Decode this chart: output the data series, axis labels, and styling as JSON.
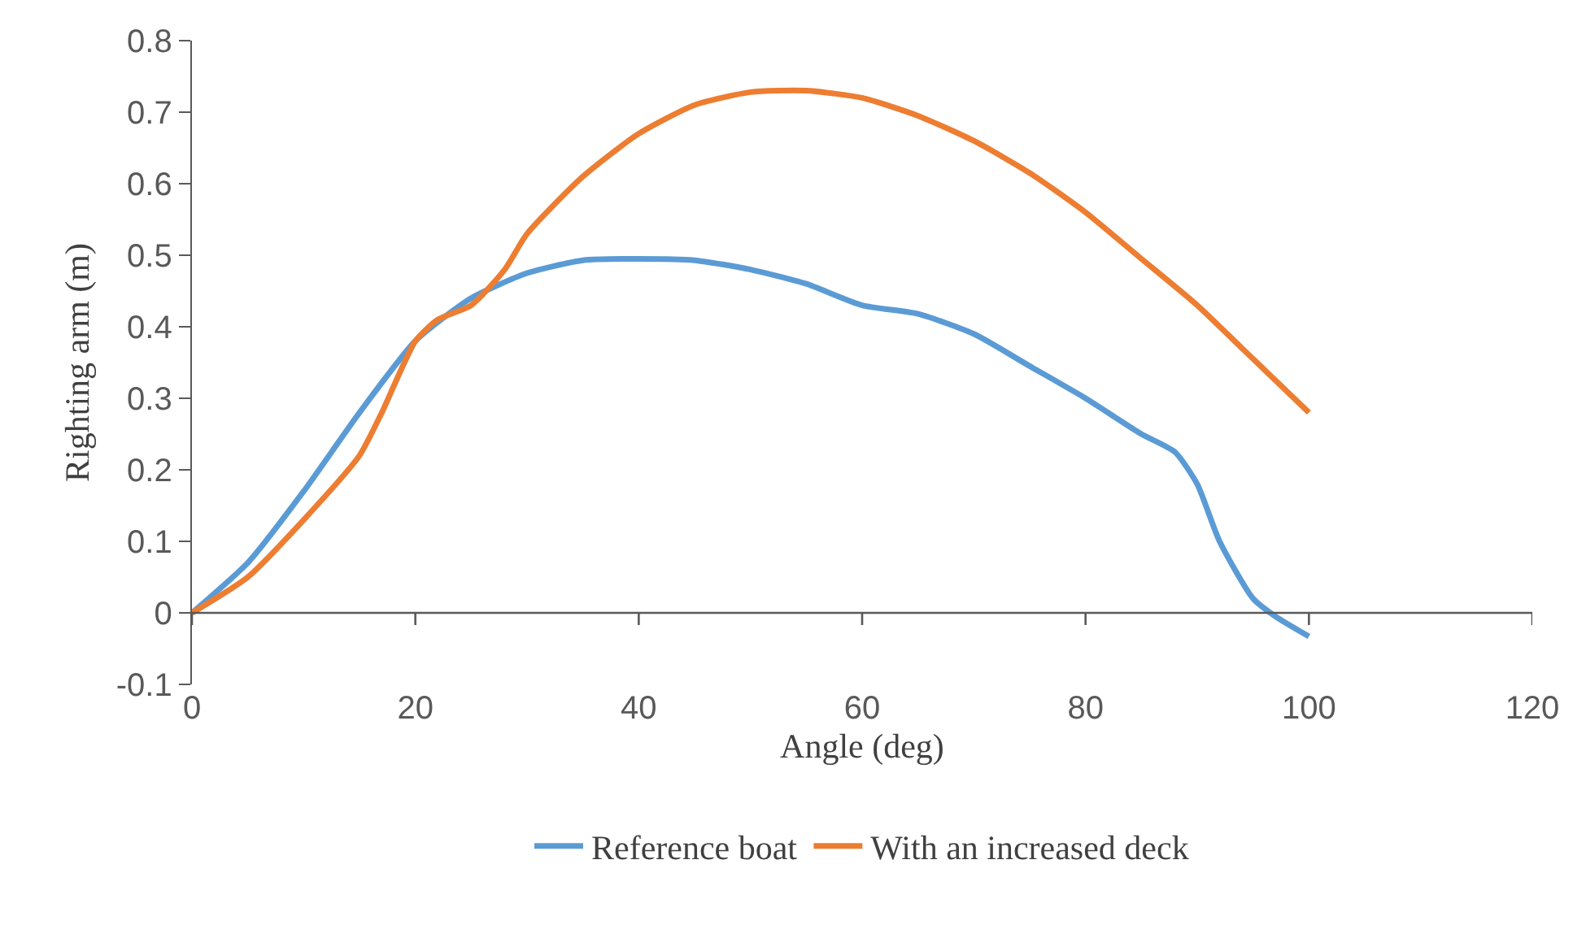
{
  "chart_data": {
    "type": "line",
    "xlabel": "Angle (deg)",
    "ylabel": "Righting arm (m)",
    "xlim": [
      0,
      120
    ],
    "xticks": [
      0,
      20,
      40,
      60,
      80,
      100,
      120
    ],
    "ylim": [
      -0.1,
      0.8
    ],
    "yticks": [
      -0.1,
      0,
      0.1,
      0.2,
      0.3,
      0.4,
      0.5,
      0.6,
      0.7,
      0.8
    ],
    "grid": false,
    "legend": "bottom",
    "marker": "none",
    "line_style": "solid",
    "series": [
      {
        "name": "Reference boat",
        "color": "#5b9bd5",
        "x": [
          0,
          5,
          10,
          15,
          20,
          25,
          30,
          35,
          40,
          45,
          50,
          55,
          60,
          65,
          70,
          75,
          80,
          85,
          88,
          90,
          92,
          95,
          97,
          100
        ],
        "values": [
          0,
          0.07,
          0.17,
          0.28,
          0.38,
          0.44,
          0.475,
          0.493,
          0.495,
          0.493,
          0.48,
          0.46,
          0.43,
          0.418,
          0.39,
          0.345,
          0.3,
          0.25,
          0.225,
          0.18,
          0.1,
          0.02,
          -0.005,
          -0.033
        ]
      },
      {
        "name": "With an increased deck",
        "color": "#ed7d31",
        "x": [
          0,
          5,
          10,
          15,
          17,
          20,
          22,
          25,
          28,
          30,
          35,
          40,
          45,
          50,
          55,
          60,
          65,
          70,
          75,
          80,
          85,
          90,
          95,
          100
        ],
        "values": [
          0,
          0.05,
          0.13,
          0.22,
          0.28,
          0.38,
          0.41,
          0.43,
          0.48,
          0.53,
          0.61,
          0.67,
          0.71,
          0.728,
          0.73,
          0.72,
          0.695,
          0.66,
          0.615,
          0.56,
          0.495,
          0.43,
          0.355,
          0.28
        ]
      }
    ]
  }
}
